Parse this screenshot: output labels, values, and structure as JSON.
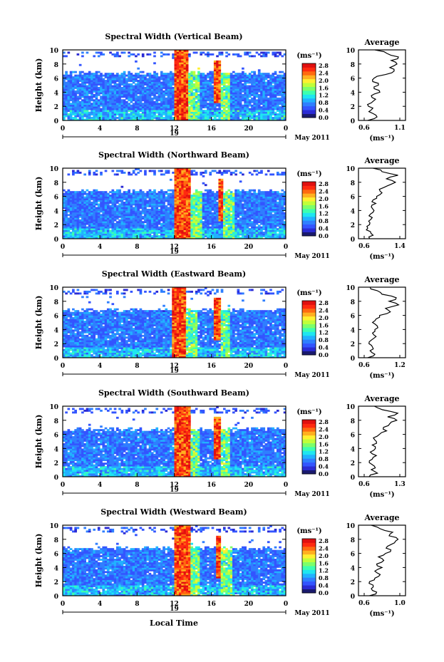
{
  "figure": {
    "xlabel": "Local Time",
    "date_label": "May 2011",
    "day_label": "19",
    "height_label": "Height (km)",
    "colorbar_unit": "(ms⁻¹)",
    "avg_title": "Average",
    "avg_unit": "(ms⁻¹)"
  },
  "colorbar": {
    "ticks": [
      "2.8",
      "2.4",
      "2.0",
      "1.6",
      "1.2",
      "0.8",
      "0.4",
      "0.0"
    ],
    "colors": [
      "#1a1a6e",
      "#2b2bd4",
      "#3355ff",
      "#2f7fff",
      "#21b2ff",
      "#1fe6f0",
      "#3dffb0",
      "#7dff6a",
      "#c0ff3a",
      "#fff030",
      "#ffb020",
      "#ff6a10",
      "#ff2a10",
      "#e01010"
    ]
  },
  "chart_data": [
    {
      "type": "heatmap",
      "title": "Spectral Width (Vertical Beam)",
      "x_ticks": [
        "0",
        "4",
        "8",
        "12",
        "16",
        "20",
        "0"
      ],
      "y_ticks": [
        "10",
        "8",
        "6",
        "4",
        "2",
        "0"
      ],
      "xlim": [
        0,
        24
      ],
      "ylim": [
        0,
        10
      ],
      "colorbar_range": [
        0.0,
        3.0
      ],
      "strong_bands_hours": [
        [
          11.8,
          13.4
        ],
        [
          16.2,
          16.8
        ]
      ],
      "average_profile": {
        "xlim": [
          0.6,
          1.1
        ],
        "x_ticks": [
          "0.6",
          "1.1"
        ],
        "y_ticks": [
          "10",
          "8",
          "6",
          "4",
          "2",
          "0"
        ],
        "height_km": [
          0,
          0.5,
          1,
          1.5,
          2,
          2.5,
          3,
          3.5,
          4,
          4.5,
          5,
          5.5,
          6,
          6.5,
          7,
          7.5,
          8,
          8.5,
          9,
          9.5,
          10
        ],
        "value": [
          0.65,
          0.78,
          0.72,
          0.7,
          0.66,
          0.7,
          0.76,
          0.7,
          0.82,
          0.74,
          0.8,
          0.72,
          0.74,
          0.9,
          1.02,
          0.96,
          1.06,
          0.98,
          1.08,
          0.92,
          0.75
        ]
      }
    },
    {
      "type": "heatmap",
      "title": "Spectral Width (Northward Beam)",
      "x_ticks": [
        "0",
        "4",
        "8",
        "12",
        "16",
        "20",
        "0"
      ],
      "y_ticks": [
        "10",
        "8",
        "6",
        "4",
        "2",
        "0"
      ],
      "xlim": [
        0,
        24
      ],
      "ylim": [
        0,
        10
      ],
      "colorbar_range": [
        0.0,
        3.0
      ],
      "strong_bands_hours": [
        [
          11.8,
          13.6
        ],
        [
          16.6,
          17.1
        ]
      ],
      "average_profile": {
        "xlim": [
          0.6,
          1.4
        ],
        "x_ticks": [
          "0.6",
          "1.4"
        ],
        "y_ticks": [
          "10",
          "8",
          "6",
          "4",
          "2",
          "0"
        ],
        "height_km": [
          0,
          0.5,
          1,
          1.5,
          2,
          2.5,
          3,
          3.5,
          4,
          4.5,
          5,
          5.5,
          6,
          6.5,
          7,
          7.5,
          8,
          8.5,
          9,
          9.5,
          10
        ],
        "value": [
          0.72,
          0.8,
          0.74,
          0.68,
          0.72,
          0.7,
          0.78,
          0.74,
          0.82,
          0.76,
          0.86,
          0.8,
          0.88,
          1.0,
          0.94,
          1.12,
          1.3,
          1.1,
          1.36,
          1.0,
          0.8
        ]
      }
    },
    {
      "type": "heatmap",
      "title": "Spectral Width (Eastward Beam)",
      "x_ticks": [
        "0",
        "4",
        "8",
        "12",
        "16",
        "20",
        "0"
      ],
      "y_ticks": [
        "10",
        "8",
        "6",
        "4",
        "2",
        "0"
      ],
      "xlim": [
        0,
        24
      ],
      "ylim": [
        0,
        10
      ],
      "colorbar_range": [
        0.0,
        3.0
      ],
      "strong_bands_hours": [
        [
          11.7,
          13.2
        ],
        [
          16.2,
          16.8
        ]
      ],
      "average_profile": {
        "xlim": [
          0.6,
          1.2
        ],
        "x_ticks": [
          "0.6",
          "1.2"
        ],
        "y_ticks": [
          "10",
          "8",
          "6",
          "4",
          "2",
          "0"
        ],
        "height_km": [
          0,
          0.5,
          1,
          1.5,
          2,
          2.5,
          3,
          3.5,
          4,
          4.5,
          5,
          5.5,
          6,
          6.5,
          7,
          7.5,
          8,
          8.5,
          9,
          9.5,
          10
        ],
        "value": [
          0.66,
          0.78,
          0.7,
          0.74,
          0.68,
          0.72,
          0.8,
          0.74,
          0.78,
          0.82,
          0.74,
          0.8,
          0.86,
          1.04,
          0.96,
          1.18,
          1.02,
          1.14,
          0.9,
          0.82,
          0.7
        ]
      }
    },
    {
      "type": "heatmap",
      "title": "Spectral Width (Southward Beam)",
      "x_ticks": [
        "0",
        "4",
        "8",
        "12",
        "16",
        "20",
        "0"
      ],
      "y_ticks": [
        "10",
        "8",
        "6",
        "4",
        "2",
        "0"
      ],
      "xlim": [
        0,
        24
      ],
      "ylim": [
        0,
        10
      ],
      "colorbar_range": [
        0.0,
        3.0
      ],
      "strong_bands_hours": [
        [
          11.8,
          13.5
        ],
        [
          16.2,
          16.8
        ]
      ],
      "average_profile": {
        "xlim": [
          0.6,
          1.3
        ],
        "x_ticks": [
          "0.6",
          "1.3"
        ],
        "y_ticks": [
          "10",
          "8",
          "6",
          "4",
          "2",
          "0"
        ],
        "height_km": [
          0,
          0.5,
          1,
          1.5,
          2,
          2.5,
          3,
          3.5,
          4,
          4.5,
          5,
          5.5,
          6,
          6.5,
          7,
          7.5,
          8,
          8.5,
          9,
          9.5,
          10
        ],
        "value": [
          0.7,
          0.86,
          0.74,
          0.8,
          0.7,
          0.76,
          0.84,
          0.72,
          0.82,
          0.76,
          0.84,
          0.78,
          0.9,
          1.04,
          0.98,
          1.1,
          1.24,
          1.06,
          1.26,
          0.96,
          0.8
        ]
      }
    },
    {
      "type": "heatmap",
      "title": "Spectral Width (Westward Beam)",
      "x_ticks": [
        "0",
        "4",
        "8",
        "12",
        "16",
        "20",
        "0"
      ],
      "y_ticks": [
        "10",
        "8",
        "6",
        "4",
        "2",
        "0"
      ],
      "xlim": [
        0,
        24
      ],
      "ylim": [
        0,
        10
      ],
      "colorbar_range": [
        0.0,
        3.0
      ],
      "strong_bands_hours": [
        [
          12.0,
          13.5
        ],
        [
          16.3,
          16.9
        ]
      ],
      "average_profile": {
        "xlim": [
          0.6,
          1.0
        ],
        "x_ticks": [
          "0.6",
          "1.0"
        ],
        "y_ticks": [
          "10",
          "8",
          "6",
          "4",
          "2",
          "0"
        ],
        "height_km": [
          0,
          0.5,
          1,
          1.5,
          2,
          2.5,
          3,
          3.5,
          4,
          4.5,
          5,
          5.5,
          6,
          6.5,
          7,
          7.5,
          8,
          8.5,
          9,
          9.5,
          10
        ],
        "value": [
          0.66,
          0.74,
          0.68,
          0.7,
          0.66,
          0.72,
          0.78,
          0.72,
          0.8,
          0.74,
          0.82,
          0.76,
          0.84,
          0.9,
          0.86,
          0.94,
          0.98,
          0.88,
          0.92,
          0.78,
          0.68
        ]
      }
    }
  ]
}
